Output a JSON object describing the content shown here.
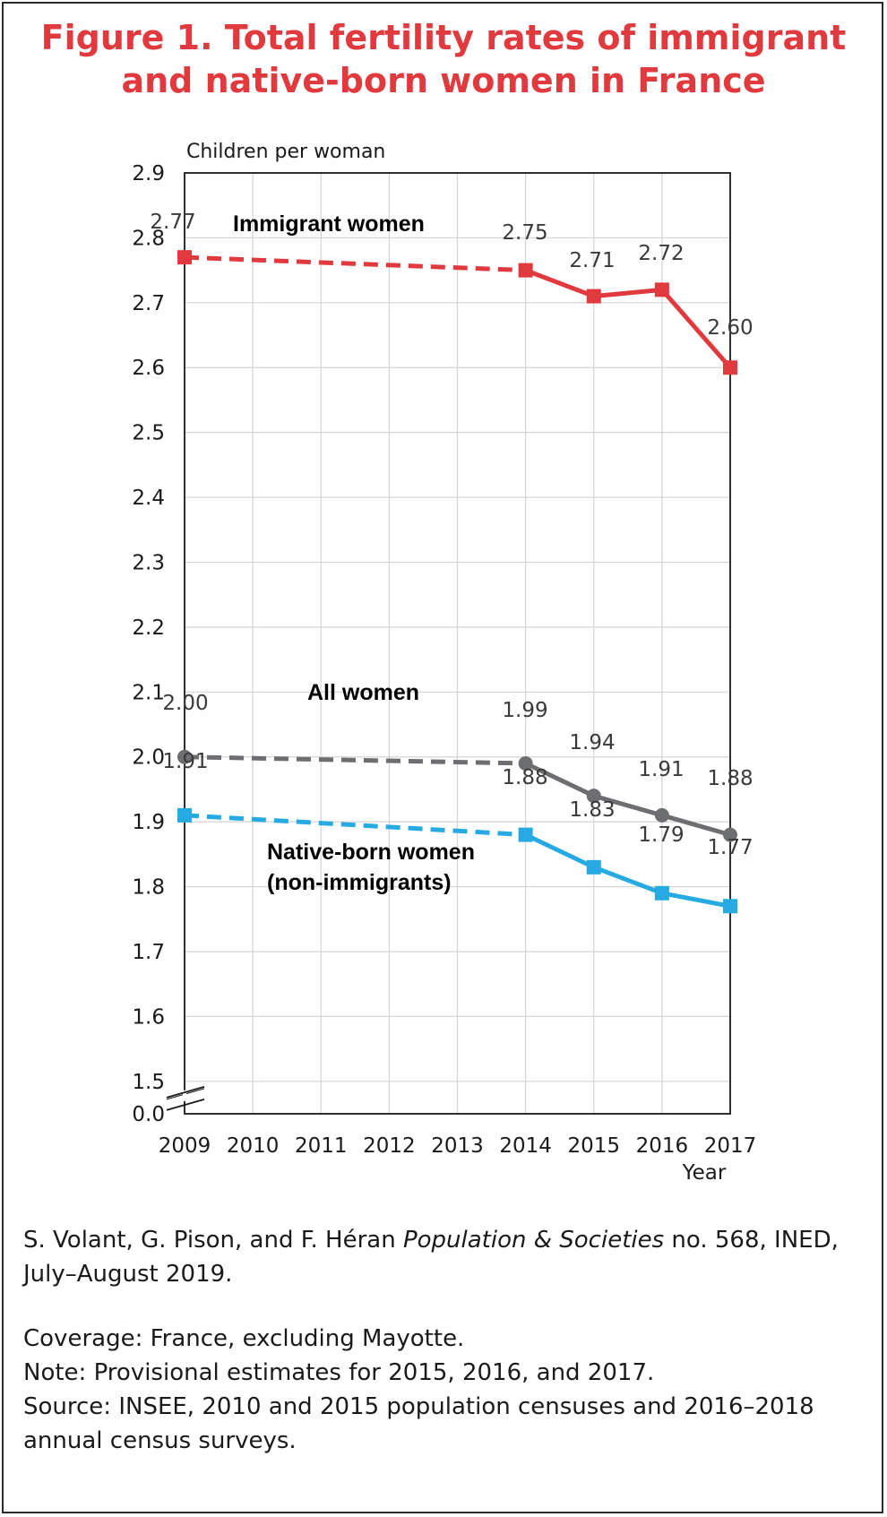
{
  "title_line1": "Figure 1. Total fertility rates of immigrant",
  "title_line2": "and native-born women in France",
  "chart_data": {
    "type": "line",
    "ylabel": "Children per woman",
    "xlabel": "Year",
    "x": [
      2009,
      2010,
      2011,
      2012,
      2013,
      2014,
      2015,
      2016,
      2017
    ],
    "y_ticks": [
      "0.0",
      "1.5",
      "1.6",
      "1.7",
      "1.8",
      "1.9",
      "2.0",
      "2.1",
      "2.2",
      "2.3",
      "2.4",
      "2.5",
      "2.6",
      "2.7",
      "2.8",
      "2.9"
    ],
    "ylim": [
      1.45,
      2.9
    ],
    "axis_break": true,
    "grid": true,
    "series": [
      {
        "name": "Immigrant women",
        "color": "#e0393e",
        "marker": "square",
        "x": [
          2009,
          2014,
          2015,
          2016,
          2017
        ],
        "values": [
          2.77,
          2.75,
          2.71,
          2.72,
          2.6
        ],
        "labels": [
          "2.77",
          "2.75",
          "2.71",
          "2.72",
          "2.60"
        ],
        "dashed_until": 2014
      },
      {
        "name": "All women",
        "color": "#6d6e71",
        "marker": "circle",
        "x": [
          2009,
          2014,
          2015,
          2016,
          2017
        ],
        "values": [
          2.0,
          1.99,
          1.94,
          1.91,
          1.88
        ],
        "labels": [
          "2.00",
          "1.99",
          "1.94",
          "1.91",
          "1.88"
        ],
        "dashed_until": 2014
      },
      {
        "name": "Native-born women (non-immigrants)",
        "name_line1": "Native-born women",
        "name_line2": "(non-immigrants)",
        "color": "#27aae1",
        "marker": "square",
        "x": [
          2009,
          2014,
          2015,
          2016,
          2017
        ],
        "values": [
          1.91,
          1.88,
          1.83,
          1.79,
          1.77
        ],
        "labels": [
          "1.91",
          "1.88",
          "1.83",
          "1.79",
          "1.77"
        ],
        "dashed_until": 2014
      }
    ]
  },
  "notes": {
    "citation_prefix": "S. Volant, G. Pison, and F. Héran ",
    "citation_publication": "Population & Societies",
    "citation_suffix": " no. 568, INED,",
    "citation_line2": "July–August 2019.",
    "coverage": "Coverage: France, excluding Mayotte.",
    "note": "Note: Provisional estimates for 2015, 2016, and 2017.",
    "source_line1": "Source: INSEE, 2010 and 2015 population censuses and 2016–2018",
    "source_line2": "annual census surveys."
  }
}
